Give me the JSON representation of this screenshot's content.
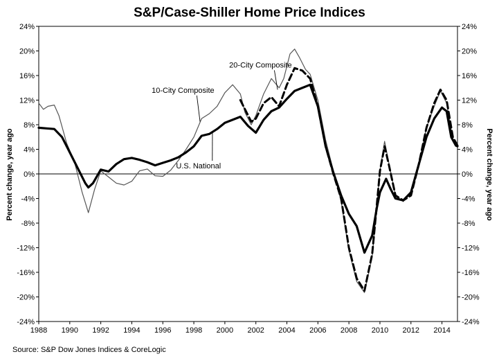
{
  "chart_data": {
    "type": "line",
    "title": "S&P/Case-Shiller Home Price Indices",
    "source": "Source: S&P Dow Jones Indices & CoreLogic",
    "ylabel_left": "Percent change, year ago",
    "ylabel_right": "Percent change, year ago",
    "xlim": [
      1988,
      2015
    ],
    "ylim": [
      -24,
      24
    ],
    "x_ticks": [
      "1988",
      "1990",
      "1992",
      "1994",
      "1996",
      "1998",
      "2000",
      "2002",
      "2004",
      "2006",
      "2008",
      "2010",
      "2012",
      "2014"
    ],
    "y_ticks": [
      "-24%",
      "-20%",
      "-16%",
      "-12%",
      "-8%",
      "-4%",
      "0%",
      "4%",
      "8%",
      "12%",
      "16%",
      "20%",
      "24%"
    ],
    "grid": false,
    "reference_line": 0,
    "series": [
      {
        "name": "U.S. National",
        "style": "solid-thick",
        "color": "#000000",
        "points": [
          [
            1988,
            7.5
          ],
          [
            1988.5,
            7.4
          ],
          [
            1989,
            7.3
          ],
          [
            1989.5,
            6.0
          ],
          [
            1990,
            3.5
          ],
          [
            1990.5,
            1.0
          ],
          [
            1991,
            -1.5
          ],
          [
            1991.2,
            -2.2
          ],
          [
            1991.5,
            -1.5
          ],
          [
            1992,
            0.7
          ],
          [
            1992.5,
            0.4
          ],
          [
            1993,
            1.6
          ],
          [
            1993.5,
            2.4
          ],
          [
            1994,
            2.6
          ],
          [
            1994.5,
            2.3
          ],
          [
            1995,
            1.9
          ],
          [
            1995.5,
            1.4
          ],
          [
            1996,
            1.8
          ],
          [
            1996.5,
            2.2
          ],
          [
            1997,
            2.7
          ],
          [
            1997.5,
            3.5
          ],
          [
            1998,
            4.5
          ],
          [
            1998.5,
            6.2
          ],
          [
            1999,
            6.5
          ],
          [
            1999.5,
            7.3
          ],
          [
            2000,
            8.3
          ],
          [
            2000.5,
            8.8
          ],
          [
            2001,
            9.3
          ],
          [
            2001.5,
            7.8
          ],
          [
            2002,
            6.7
          ],
          [
            2002.5,
            8.8
          ],
          [
            2003,
            10.2
          ],
          [
            2003.5,
            10.8
          ],
          [
            2004,
            12.2
          ],
          [
            2004.5,
            13.5
          ],
          [
            2005,
            14.0
          ],
          [
            2005.5,
            14.5
          ],
          [
            2006,
            11.0
          ],
          [
            2006.5,
            4.5
          ],
          [
            2007,
            0.2
          ],
          [
            2007.5,
            -3.5
          ],
          [
            2008,
            -6.5
          ],
          [
            2008.5,
            -8.5
          ],
          [
            2009,
            -12.8
          ],
          [
            2009.5,
            -10.0
          ],
          [
            2009.8,
            -5.5
          ],
          [
            2010,
            -3.0
          ],
          [
            2010.4,
            -0.8
          ],
          [
            2010.7,
            -2.5
          ],
          [
            2011,
            -4.0
          ],
          [
            2011.5,
            -4.3
          ],
          [
            2012,
            -3.0
          ],
          [
            2012.5,
            1.5
          ],
          [
            2013,
            6.0
          ],
          [
            2013.5,
            9.0
          ],
          [
            2014,
            10.8
          ],
          [
            2014.3,
            10.2
          ],
          [
            2014.6,
            6.0
          ],
          [
            2014.9,
            4.6
          ],
          [
            2015,
            4.5
          ]
        ]
      },
      {
        "name": "10-City Composite",
        "style": "solid-thin",
        "color": "#555555",
        "points": [
          [
            1988,
            11.5
          ],
          [
            1988.3,
            10.5
          ],
          [
            1988.6,
            11.0
          ],
          [
            1989,
            11.2
          ],
          [
            1989.3,
            9.5
          ],
          [
            1989.8,
            5.0
          ],
          [
            1990.3,
            2.0
          ],
          [
            1990.8,
            -3.0
          ],
          [
            1991.2,
            -6.3
          ],
          [
            1991.6,
            -2.5
          ],
          [
            1992,
            0.5
          ],
          [
            1992.5,
            -0.5
          ],
          [
            1993,
            -1.5
          ],
          [
            1993.5,
            -1.8
          ],
          [
            1994,
            -1.2
          ],
          [
            1994.5,
            0.5
          ],
          [
            1995,
            0.8
          ],
          [
            1995.5,
            -0.3
          ],
          [
            1996,
            -0.4
          ],
          [
            1996.5,
            0.6
          ],
          [
            1997,
            2.2
          ],
          [
            1997.5,
            4.0
          ],
          [
            1998,
            6.0
          ],
          [
            1998.5,
            9.0
          ],
          [
            1999,
            9.8
          ],
          [
            1999.5,
            11.0
          ],
          [
            2000,
            13.2
          ],
          [
            2000.5,
            14.5
          ],
          [
            2001,
            13.0
          ],
          [
            2001.3,
            10.0
          ],
          [
            2001.7,
            8.0
          ],
          [
            2002,
            9.5
          ],
          [
            2002.5,
            13.0
          ],
          [
            2003,
            15.5
          ],
          [
            2003.5,
            14.0
          ],
          [
            2003.8,
            15.5
          ],
          [
            2004.2,
            19.5
          ],
          [
            2004.5,
            20.3
          ],
          [
            2004.8,
            19.0
          ],
          [
            2005.2,
            17.0
          ],
          [
            2005.5,
            16.2
          ],
          [
            2006,
            12.0
          ],
          [
            2006.5,
            5.5
          ],
          [
            2007,
            0.5
          ],
          [
            2007.5,
            -4.5
          ],
          [
            2008,
            -12.5
          ],
          [
            2008.5,
            -17.5
          ],
          [
            2009,
            -19.3
          ],
          [
            2009.5,
            -13.5
          ],
          [
            2009.8,
            -5.0
          ],
          [
            2010,
            0.5
          ],
          [
            2010.3,
            5.3
          ],
          [
            2010.6,
            1.5
          ],
          [
            2011,
            -3.5
          ],
          [
            2011.5,
            -4.5
          ],
          [
            2012,
            -3.0
          ],
          [
            2012.5,
            1.5
          ],
          [
            2013,
            7.5
          ],
          [
            2013.5,
            11.0
          ],
          [
            2013.9,
            13.5
          ],
          [
            2014.3,
            11.5
          ],
          [
            2014.7,
            5.5
          ],
          [
            2015,
            4.5
          ]
        ]
      },
      {
        "name": "20-City Composite",
        "style": "dashed-thick",
        "color": "#000000",
        "points": [
          [
            2001,
            12.0
          ],
          [
            2001.3,
            10.5
          ],
          [
            2001.7,
            8.5
          ],
          [
            2002,
            9.0
          ],
          [
            2002.5,
            11.5
          ],
          [
            2003,
            12.5
          ],
          [
            2003.5,
            11.0
          ],
          [
            2004,
            14.5
          ],
          [
            2004.5,
            17.2
          ],
          [
            2005,
            16.8
          ],
          [
            2005.5,
            15.5
          ],
          [
            2006,
            11.0
          ],
          [
            2006.5,
            4.5
          ],
          [
            2007,
            0.0
          ],
          [
            2007.5,
            -4.0
          ],
          [
            2008,
            -12.0
          ],
          [
            2008.5,
            -17.0
          ],
          [
            2009,
            -19.0
          ],
          [
            2009.5,
            -13.0
          ],
          [
            2009.8,
            -5.0
          ],
          [
            2010,
            0.5
          ],
          [
            2010.3,
            4.5
          ],
          [
            2010.6,
            1.2
          ],
          [
            2011,
            -3.5
          ],
          [
            2011.5,
            -4.3
          ],
          [
            2012,
            -3.5
          ],
          [
            2012.5,
            1.5
          ],
          [
            2013,
            7.5
          ],
          [
            2013.5,
            11.5
          ],
          [
            2013.9,
            13.7
          ],
          [
            2014.3,
            12.0
          ],
          [
            2014.7,
            6.0
          ],
          [
            2015,
            4.6
          ]
        ]
      }
    ],
    "annotations": [
      {
        "text": "10-City Composite",
        "x": 1997.3,
        "y": 13.2,
        "arrow_to": [
          1998.4,
          8.5
        ]
      },
      {
        "text": "20-City Composite",
        "x": 2002.3,
        "y": 17.3,
        "arrow_to": [
          2003.4,
          13.7
        ]
      },
      {
        "text": "U.S. National",
        "x": 1998.3,
        "y": 0.9,
        "arrow_to": [
          1999.2,
          6.8
        ]
      }
    ]
  }
}
